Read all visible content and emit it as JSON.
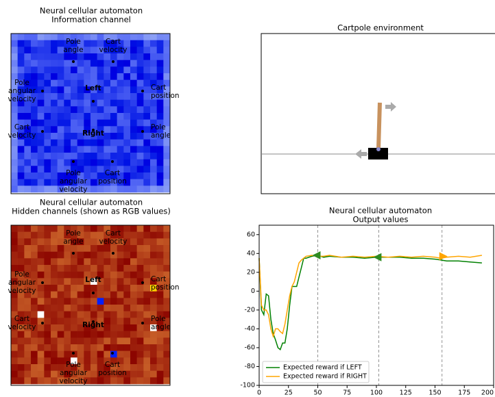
{
  "panels": [
    {
      "title": [
        "Neural cellular automaton",
        "Information channel"
      ],
      "labels": [
        {
          "lines": [
            "Pole",
            "angle"
          ]
        },
        {
          "lines": [
            "Cart",
            "velocity"
          ]
        },
        {
          "lines": [
            "Pole",
            "angular",
            "velocity"
          ]
        },
        {
          "lines": [
            "Cart",
            "position"
          ]
        },
        {
          "lines": [
            "Cart",
            "velocity"
          ]
        },
        {
          "lines": [
            "Pole",
            "angle"
          ]
        },
        {
          "lines": [
            "Pole",
            "angular",
            "velocity"
          ]
        },
        {
          "lines": [
            "Cart",
            "position"
          ]
        }
      ],
      "action_labels": [
        "Left",
        "Right"
      ]
    },
    {
      "title": [
        "Neural cellular automaton",
        "Hidden channels (shown as RGB values)"
      ],
      "labels": [
        {
          "lines": [
            "Pole",
            "angle"
          ]
        },
        {
          "lines": [
            "Cart",
            "velocity"
          ]
        },
        {
          "lines": [
            "Pole",
            "angular",
            "velocity"
          ]
        },
        {
          "lines": [
            "Cart",
            "position"
          ]
        },
        {
          "lines": [
            "Cart",
            "velocity"
          ]
        },
        {
          "lines": [
            "Pole",
            "angle"
          ]
        },
        {
          "lines": [
            "Pole",
            "angular",
            "velocity"
          ]
        },
        {
          "lines": [
            "Cart",
            "position"
          ]
        }
      ],
      "action_labels": [
        "Left",
        "Right"
      ]
    }
  ],
  "environment": {
    "title": "Cartpole environment"
  },
  "chart_data": {
    "type": "line",
    "title": [
      "Neural cellular automaton",
      "Output values"
    ],
    "x": [
      0,
      2,
      4,
      6,
      8,
      10,
      12,
      14,
      16,
      18,
      20,
      22,
      24,
      26,
      28,
      30,
      32,
      34,
      36,
      38,
      40,
      45,
      50,
      55,
      60,
      70,
      80,
      90,
      100,
      110,
      120,
      130,
      140,
      150,
      155,
      160,
      170,
      180,
      190
    ],
    "series": [
      {
        "name": "Expected reward if LEFT",
        "color": "#008000",
        "values": [
          35,
          -20,
          -25,
          -3,
          -5,
          -30,
          -45,
          -52,
          -60,
          -62,
          -55,
          -55,
          -40,
          -15,
          5,
          5,
          5,
          15,
          25,
          35,
          35,
          37,
          38,
          36,
          37,
          36,
          36,
          35,
          36,
          36,
          36,
          35,
          35,
          34,
          33,
          32,
          32,
          31,
          30
        ]
      },
      {
        "name": "Expected reward if RIGHT",
        "color": "#ffa500",
        "values": [
          35,
          -15,
          -20,
          -20,
          -25,
          -40,
          -48,
          -40,
          -40,
          -43,
          -45,
          -35,
          -20,
          -5,
          5,
          10,
          20,
          30,
          33,
          35,
          37,
          38,
          37,
          37,
          38,
          36,
          37,
          36,
          37,
          36,
          37,
          36,
          37,
          36,
          35,
          36,
          37,
          36,
          38
        ]
      }
    ],
    "xlim": [
      0,
      200
    ],
    "ylim": [
      -100,
      70
    ],
    "xticks": [
      0,
      25,
      50,
      75,
      100,
      125,
      150,
      175,
      200
    ],
    "yticks": [
      -100,
      -80,
      -60,
      -40,
      -20,
      0,
      20,
      40,
      60
    ],
    "vlines": [
      50,
      102,
      156
    ],
    "markers": [
      {
        "x": 50,
        "y": 38,
        "direction": "left",
        "color": "#2e8b22"
      },
      {
        "x": 102,
        "y": 36,
        "direction": "left",
        "color": "#2e8b22"
      },
      {
        "x": 156,
        "y": 37,
        "direction": "right",
        "color": "#ffa500"
      }
    ],
    "legend": "lower left"
  }
}
